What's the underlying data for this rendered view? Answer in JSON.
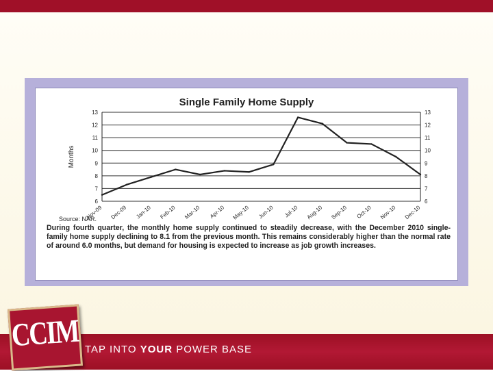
{
  "chart_data": {
    "type": "line",
    "title": "Single Family Home Supply",
    "ylabel": "Months",
    "xlabel": "",
    "categories": [
      "Nov-09",
      "Dec-09",
      "Jan-10",
      "Feb-10",
      "Mar-10",
      "Apr-10",
      "May-10",
      "Jun-10",
      "Jul-10",
      "Aug-10",
      "Sep-10",
      "Oct-10",
      "Nov-10",
      "Dec-10"
    ],
    "series": [
      {
        "values": [
          6.5,
          7.3,
          7.9,
          8.5,
          8.1,
          8.4,
          8.3,
          8.9,
          12.6,
          12.1,
          10.6,
          10.5,
          9.5,
          8.1
        ]
      }
    ],
    "ylim": [
      6,
      13
    ],
    "yticks": [
      "6",
      "7",
      "8",
      "9",
      "10",
      "11",
      "12",
      "13"
    ],
    "secondary_axis": "right",
    "grid": true,
    "line_color": "#222222"
  },
  "figure": {
    "source": "Source: NAR.",
    "caption": "During fourth quarter, the monthly home supply continued to steadily decrease, with the December 2010 single-family home supply declining to 8.1 from the previous month. This remains considerably higher than the normal rate of around 6.0 months, but demand for housing is expected to increase as job growth increases."
  },
  "footer": {
    "logo_text": "CCIM",
    "tagline_prefix": "TAP INTO ",
    "tagline_em": "YOUR",
    "tagline_suffix": " POWER BASE"
  },
  "colors": {
    "brand_red": "#a01028",
    "frame_purple": "#b6b0da"
  }
}
